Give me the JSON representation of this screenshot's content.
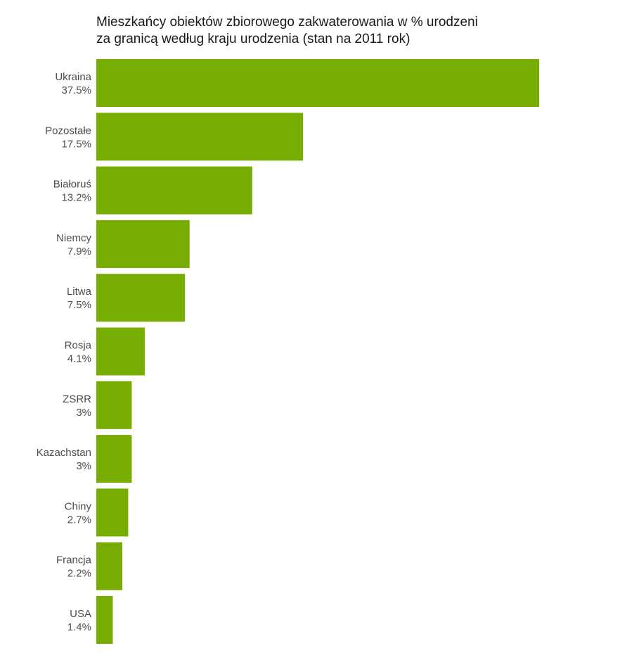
{
  "chart_data": {
    "type": "bar",
    "orientation": "horizontal",
    "title_lines": [
      "Mieszkańcy obiektów zbiorowego zakwaterowania w % urodzeni",
      "za granicą według kraju urodzenia (stan na 2011 rok)"
    ],
    "categories": [
      "Ukraina",
      "Pozostałe",
      "Białoruś",
      "Niemcy",
      "Litwa",
      "Rosja",
      "ZSRR",
      "Kazachstan",
      "Chiny",
      "Francja",
      "USA"
    ],
    "value_labels": [
      "37.5%",
      "17.5%",
      "13.2%",
      "7.9%",
      "7.5%",
      "4.1%",
      "3%",
      "3%",
      "2.7%",
      "2.2%",
      "1.4%"
    ],
    "values": [
      37.5,
      17.5,
      13.2,
      7.9,
      7.5,
      4.1,
      3.0,
      3.0,
      2.7,
      2.2,
      1.4
    ],
    "xlim": [
      0,
      37.5
    ],
    "grid": false,
    "legend": "none",
    "bar_color": "#77ac00"
  }
}
